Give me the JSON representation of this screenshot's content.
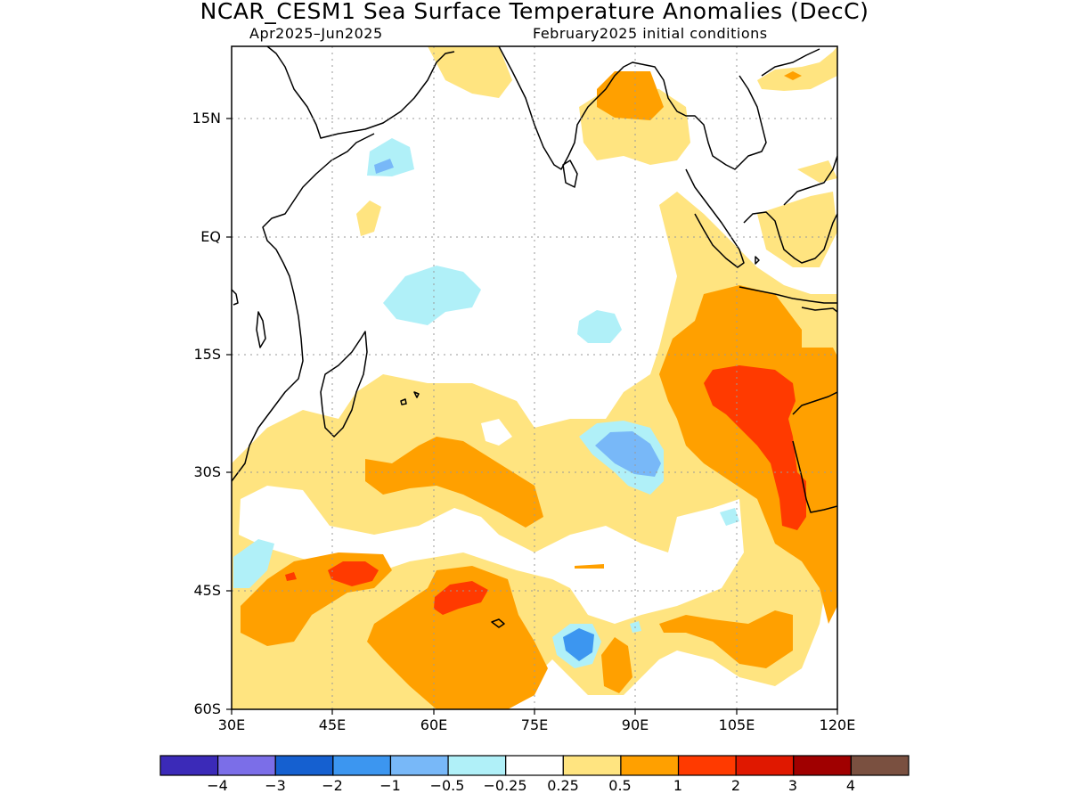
{
  "header": {
    "title": "NCAR_CESM1 Sea Surface Temperature Anomalies (DecC)",
    "period": "Apr2025–Jun2025",
    "init": "February2025 initial conditions"
  },
  "axes": {
    "y_labels": [
      "15N",
      "EQ",
      "15S",
      "30S",
      "45S",
      "60S"
    ],
    "x_labels": [
      "30E",
      "45E",
      "60E",
      "75E",
      "90E",
      "105E",
      "120E"
    ]
  },
  "colorbar": {
    "labels": [
      "−4",
      "−3",
      "−2",
      "−1",
      "−0.5",
      "−0.25",
      "0.25",
      "0.5",
      "1",
      "2",
      "3",
      "4"
    ],
    "colors": [
      "#3b2ab8",
      "#7b6ee8",
      "#1560d0",
      "#3c96f0",
      "#78b8f8",
      "#b0f0f8",
      "#ffffff",
      "#ffe480",
      "#ffa000",
      "#ff3a00",
      "#e01800",
      "#a00000",
      "#7a5040"
    ]
  },
  "chart_data": {
    "type": "heatmap",
    "title": "NCAR_CESM1 Sea Surface Temperature Anomalies (DecC)",
    "lon_range": [
      30,
      120
    ],
    "lat_range": [
      -60,
      24
    ],
    "grid": true,
    "levels": [
      -4,
      -3,
      -2,
      -1,
      -0.5,
      -0.25,
      0.25,
      0.5,
      1,
      2,
      3,
      4
    ]
  }
}
